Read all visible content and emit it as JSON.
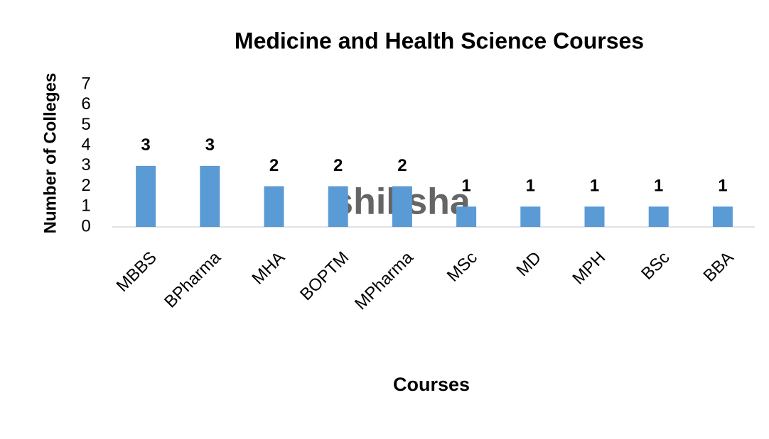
{
  "chart_data": {
    "type": "bar",
    "title": "Medicine and Health Science Courses",
    "x_label": "Courses",
    "y_label": "Number of Colleges",
    "categories": [
      "MBBS",
      "BPharma",
      "MHA",
      "BOPTM",
      "MPharma",
      "MSc",
      "MD",
      "MPH",
      "BSc",
      "BBA"
    ],
    "values": [
      3,
      3,
      2,
      2,
      2,
      1,
      1,
      1,
      1,
      1
    ],
    "color": "#5b9bd5",
    "ylim": [
      0,
      7
    ],
    "yticks": [
      0,
      1,
      2,
      3,
      4,
      5,
      6,
      7
    ],
    "grid": false,
    "watermark": "shiksha"
  }
}
